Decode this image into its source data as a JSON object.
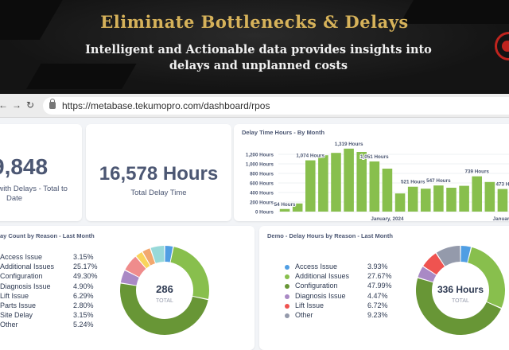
{
  "promo": {
    "title": "Eliminate Bottlenecks & Delays",
    "subtitle_line1": "Intelligent and Actionable data provides insights into",
    "subtitle_line2": "delays and unplanned costs"
  },
  "browser": {
    "back_icon": "←",
    "forward_icon": "→",
    "reload_icon": "↻",
    "url": "https://metabase.tekumopro.com/dashboard/rpos"
  },
  "kpi1": {
    "value": "9,848",
    "caption_line1": "s with Delays - Total to",
    "caption_line2": "Date"
  },
  "kpi2": {
    "value": "16,578 Hours",
    "caption": "Total Delay Time"
  },
  "chart_data": [
    {
      "type": "bar",
      "title": "Delay Time Hours - By Month",
      "xlabel": "",
      "ylabel": "",
      "ylim": [
        0,
        1400
      ],
      "yticks": [
        "1,200 Hours",
        "1,000 Hours",
        "800 Hours",
        "600 Hours",
        "400 Hours",
        "200 Hours",
        "0 Hours"
      ],
      "xtick_labels": [
        "January, 2024",
        "January, 20"
      ],
      "color": "#88bf4d",
      "values": [
        54,
        170,
        1074,
        1180,
        1230,
        1319,
        1250,
        1051,
        900,
        380,
        521,
        480,
        547,
        500,
        540,
        739,
        620,
        473
      ],
      "data_labels": [
        {
          "index": 0,
          "text": "54 Hours"
        },
        {
          "index": 2,
          "text": "1,074 Hours"
        },
        {
          "index": 5,
          "text": "1,319 Hours"
        },
        {
          "index": 7,
          "text": "1,051 Hours"
        },
        {
          "index": 10,
          "text": "521 Hours"
        },
        {
          "index": 12,
          "text": "547 Hours"
        },
        {
          "index": 15,
          "text": "739 Hours"
        },
        {
          "index": 17,
          "text": "473 H"
        }
      ]
    },
    {
      "type": "pie",
      "title": "ay Count by Reason - Last Month",
      "center_value": "286",
      "center_label": "TOTAL",
      "slices": [
        {
          "label": "Access Issue",
          "pct_text": "3.15%",
          "value": 3.15,
          "color": "#509ee3"
        },
        {
          "label": "Additional Issues",
          "pct_text": "25.17%",
          "value": 25.17,
          "color": "#88bf4d"
        },
        {
          "label": "Configuration",
          "pct_text": "49.30%",
          "value": 49.3,
          "color": "#689636"
        },
        {
          "label": "Diagnosis Issue",
          "pct_text": "4.90%",
          "value": 4.9,
          "color": "#a989c5"
        },
        {
          "label": "Lift Issue",
          "pct_text": "6.29%",
          "value": 6.29,
          "color": "#ef8c8c"
        },
        {
          "label": "Parts Issue",
          "pct_text": "2.80%",
          "value": 2.8,
          "color": "#f9d45c"
        },
        {
          "label": "Site Delay",
          "pct_text": "3.15%",
          "value": 3.15,
          "color": "#f2a86f"
        },
        {
          "label": "Other",
          "pct_text": "5.24%",
          "value": 5.24,
          "color": "#98d9d9"
        }
      ]
    },
    {
      "type": "pie",
      "title": "Demo - Delay Hours by Reason - Last Month",
      "center_value": "336 Hours",
      "center_label": "TOTAL",
      "slices": [
        {
          "label": "Access Issue",
          "pct_text": "3.93%",
          "value": 3.93,
          "color": "#509ee3"
        },
        {
          "label": "Additional Issues",
          "pct_text": "27.67%",
          "value": 27.67,
          "color": "#88bf4d"
        },
        {
          "label": "Configuration",
          "pct_text": "47.99%",
          "value": 47.99,
          "color": "#689636"
        },
        {
          "label": "Diagnosis Issue",
          "pct_text": "4.47%",
          "value": 4.47,
          "color": "#a989c5"
        },
        {
          "label": "Lift Issue",
          "pct_text": "6.72%",
          "value": 6.72,
          "color": "#ef5350"
        },
        {
          "label": "Other",
          "pct_text": "9.23%",
          "value": 9.23,
          "color": "#949aab"
        }
      ]
    }
  ]
}
